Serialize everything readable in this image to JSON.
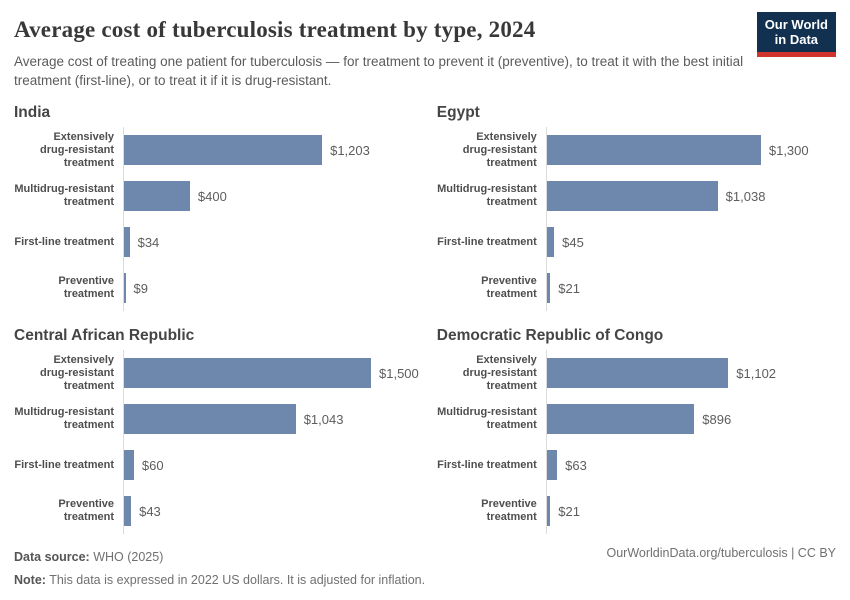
{
  "header": {
    "title": "Average cost of tuberculosis treatment by type, 2024",
    "subtitle": "Average cost of treating one patient for tuberculosis — for treatment to prevent it (preventive), to treat it with the best initial treatment (first-line), or to treat it if it is drug-resistant.",
    "logo": {
      "line1": "Our World",
      "line2": "in Data",
      "bg_color": "#12304f",
      "accent_color": "#d0342c"
    }
  },
  "chart_data": {
    "type": "bar",
    "orientation": "horizontal",
    "unit": "US$ (2022, inflation-adjusted)",
    "grid": false,
    "legend": false,
    "xlim": [
      0,
      1500
    ],
    "bar_color": "#6e87ad",
    "categories": [
      "Extensively drug-resistant treatment",
      "Multidrug-resistant treatment",
      "First-line treatment",
      "Preventive treatment"
    ],
    "category_label_lines": [
      [
        "Extensively",
        "drug-resistant",
        "treatment"
      ],
      [
        "Multidrug-resistant",
        "treatment"
      ],
      [
        "First-line treatment"
      ],
      [
        "Preventive",
        "treatment"
      ]
    ],
    "panels": [
      {
        "title": "India",
        "values": [
          1203,
          400,
          34,
          9
        ],
        "value_labels": [
          "$1,203",
          "$400",
          "$34",
          "$9"
        ]
      },
      {
        "title": "Egypt",
        "values": [
          1300,
          1038,
          45,
          21
        ],
        "value_labels": [
          "$1,300",
          "$1,038",
          "$45",
          "$21"
        ]
      },
      {
        "title": "Central African Republic",
        "values": [
          1500,
          1043,
          60,
          43
        ],
        "value_labels": [
          "$1,500",
          "$1,043",
          "$60",
          "$43"
        ]
      },
      {
        "title": "Democratic Republic of Congo",
        "values": [
          1102,
          896,
          63,
          21
        ],
        "value_labels": [
          "$1,102",
          "$896",
          "$63",
          "$21"
        ]
      }
    ]
  },
  "footer": {
    "source_label": "Data source:",
    "source_text": " WHO (2025)",
    "note_label": "Note:",
    "note_text": " This data is expressed in 2022 US dollars. It is adjusted for inflation.",
    "attribution": "OurWorldinData.org/tuberculosis | CC BY"
  }
}
